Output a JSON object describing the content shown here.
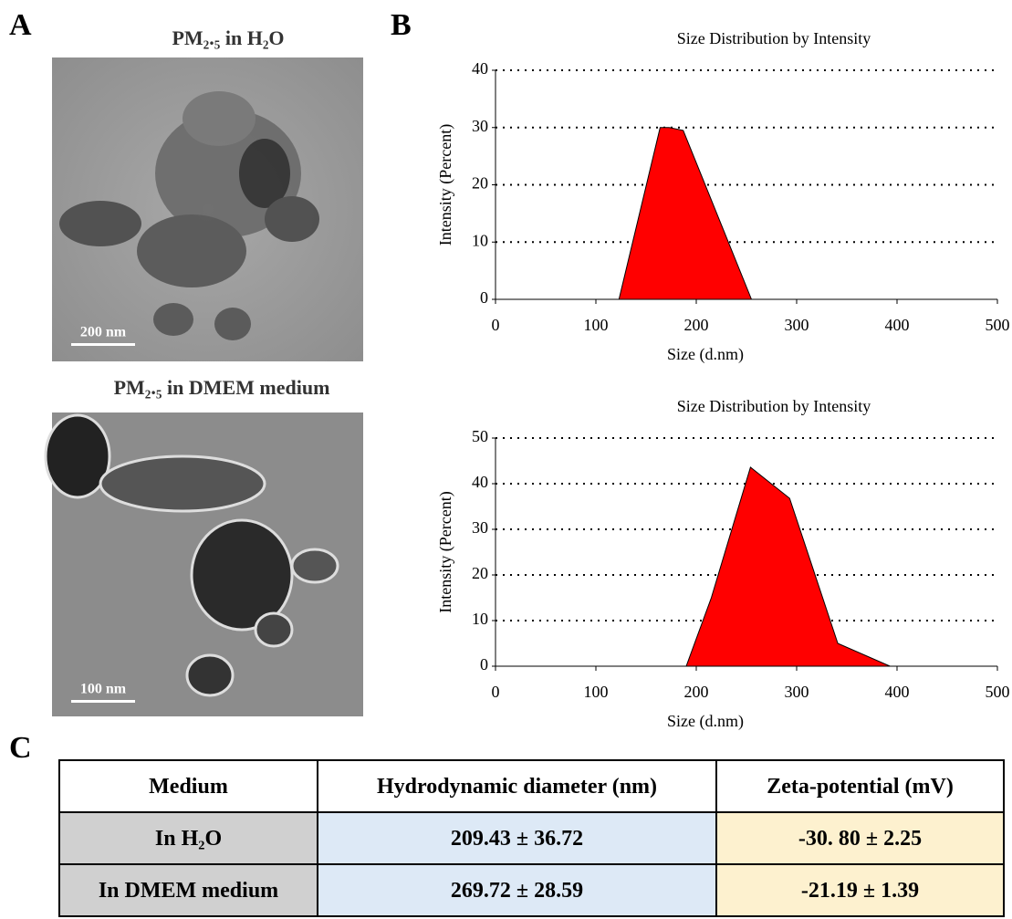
{
  "panels": [
    "A",
    "B",
    "C"
  ],
  "images": [
    {
      "title": "PM₂.₅ in H₂O",
      "scale_bar": "200 nm"
    },
    {
      "title": "PM₂.₅ in DMEM medium",
      "scale_bar": "100 nm"
    }
  ],
  "chart_data": [
    {
      "type": "area",
      "title": "Size Distribution by Intensity",
      "x_label": "Size (d.nm)",
      "y_label": "Intensity (Percent)",
      "x": [
        0,
        123,
        164,
        173,
        187,
        255,
        500
      ],
      "values": [
        0,
        0,
        30,
        30,
        29.5,
        0,
        0
      ],
      "color": "#ff0000",
      "xlim": [
        0,
        500
      ],
      "xticks": [
        0,
        100,
        200,
        300,
        400,
        500
      ],
      "ylim": [
        0,
        40
      ],
      "yticks": [
        0,
        10,
        20,
        30,
        40
      ],
      "grid": true
    },
    {
      "type": "area",
      "title": "Size Distribution by Intensity",
      "x_label": "Size (d.nm)",
      "y_label": "Intensity (Percent)",
      "x": [
        0,
        190,
        215,
        254,
        293,
        341,
        393,
        500
      ],
      "values": [
        0,
        0,
        15,
        43.6,
        36.8,
        5,
        0,
        0
      ],
      "color": "#ff0000",
      "xlim": [
        0,
        500
      ],
      "xticks": [
        0,
        100,
        200,
        300,
        400,
        500
      ],
      "ylim": [
        0,
        50
      ],
      "yticks": [
        0,
        10,
        20,
        30,
        40,
        50
      ],
      "grid": true
    }
  ],
  "table": {
    "header": [
      "Medium",
      "Hydrodynamic diameter (nm)",
      "Zeta-potential (mV)"
    ],
    "rows": [
      [
        "In H₂O",
        "209.43 ± 36.72",
        "-30. 80 ± 2.25"
      ],
      [
        "In DMEM medium",
        "269.72 ± 28.59",
        "-21.19 ± 1.39"
      ]
    ]
  }
}
